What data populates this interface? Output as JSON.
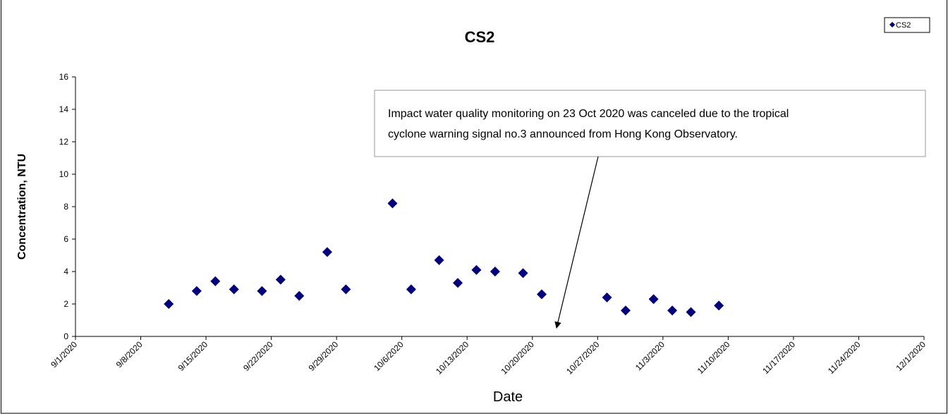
{
  "chart_data": {
    "type": "scatter",
    "title": "CS2",
    "x_label": "Date",
    "y_label": "Concentration, NTU",
    "annotation": [
      "Impact water quality monitoring on 23 Oct 2020 was canceled due to the tropical",
      "cyclone warning signal no.3 announced from Hong Kong Observatory."
    ],
    "series": [
      {
        "name": "CS2",
        "color": "#000080",
        "x": [
          "9/11/2020",
          "9/14/2020",
          "9/16/2020",
          "9/18/2020",
          "9/21/2020",
          "9/23/2020",
          "9/25/2020",
          "9/28/2020",
          "9/30/2020",
          "10/5/2020",
          "10/7/2020",
          "10/10/2020",
          "10/12/2020",
          "10/14/2020",
          "10/16/2020",
          "10/19/2020",
          "10/21/2020",
          "10/28/2020",
          "10/30/2020",
          "11/2/2020",
          "11/4/2020",
          "11/6/2020",
          "11/9/2020"
        ],
        "values": [
          2.0,
          2.8,
          3.4,
          2.9,
          2.8,
          3.5,
          2.5,
          5.2,
          2.9,
          8.2,
          2.9,
          4.7,
          3.3,
          4.1,
          4.0,
          3.9,
          2.6,
          2.4,
          1.6,
          2.3,
          1.6,
          1.5,
          1.9
        ]
      }
    ],
    "xlim": [
      "9/1/2020",
      "12/1/2020"
    ],
    "xticks": [
      "9/1/2020",
      "9/8/2020",
      "9/15/2020",
      "9/22/2020",
      "9/29/2020",
      "10/6/2020",
      "10/13/2020",
      "10/20/2020",
      "10/27/2020",
      "11/3/2020",
      "11/10/2020",
      "11/17/2020",
      "11/24/2020",
      "12/1/2020"
    ],
    "ylim": [
      0,
      16
    ],
    "yticks": [
      0,
      2,
      4,
      6,
      8,
      10,
      12,
      14,
      16
    ],
    "legend": "top-right",
    "grid": false
  }
}
